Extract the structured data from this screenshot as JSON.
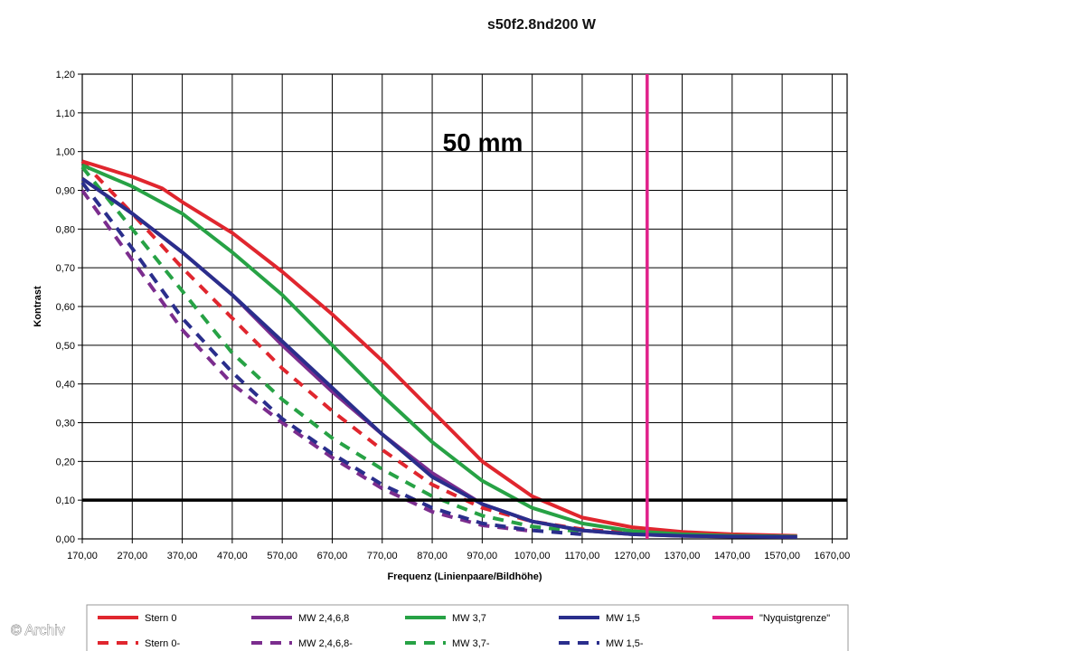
{
  "watermark": "© Archiv",
  "chart_data": {
    "type": "line",
    "title": "s50f2.8nd200 W",
    "annotation": "50 mm",
    "xlabel": "Frequenz (Linienpaare/Bildhöhe)",
    "ylabel": "Kontrast",
    "xlim": [
      170,
      1700
    ],
    "ylim": [
      0,
      1.2
    ],
    "x_ticks": [
      "170,00",
      "270,00",
      "370,00",
      "470,00",
      "570,00",
      "670,00",
      "770,00",
      "870,00",
      "970,00",
      "1070,00",
      "1170,00",
      "1270,00",
      "1370,00",
      "1470,00",
      "1570,00",
      "1670,00"
    ],
    "x_tick_values": [
      170,
      270,
      370,
      470,
      570,
      670,
      770,
      870,
      970,
      1070,
      1170,
      1270,
      1370,
      1470,
      1570,
      1670
    ],
    "y_ticks": [
      "0,00",
      "0,10",
      "0,20",
      "0,30",
      "0,40",
      "0,50",
      "0,60",
      "0,70",
      "0,80",
      "0,90",
      "1,00",
      "1,10",
      "1,20"
    ],
    "y_tick_values": [
      0,
      0.1,
      0.2,
      0.3,
      0.4,
      0.5,
      0.6,
      0.7,
      0.8,
      0.9,
      1.0,
      1.1,
      1.2
    ],
    "grid": true,
    "legend_position": "bottom",
    "reference_lines": [
      {
        "orientation": "horizontal",
        "value": 0.1,
        "color": "#000000"
      },
      {
        "orientation": "vertical",
        "value": 1300,
        "color": "#e0208a",
        "name": "\"Nyquistgrenze\""
      }
    ],
    "series": [
      {
        "name": "Stern 0",
        "color": "#e0262e",
        "dash": false,
        "x": [
          170,
          270,
          330,
          370,
          470,
          570,
          670,
          770,
          870,
          970,
          1070,
          1170,
          1270,
          1370,
          1470,
          1600
        ],
        "y": [
          0.975,
          0.935,
          0.905,
          0.87,
          0.79,
          0.69,
          0.58,
          0.46,
          0.33,
          0.2,
          0.11,
          0.055,
          0.03,
          0.018,
          0.012,
          0.008
        ]
      },
      {
        "name": "Stern 0-",
        "color": "#e0262e",
        "dash": true,
        "x": [
          170,
          270,
          370,
          470,
          570,
          670,
          770,
          870,
          970,
          1070,
          1170,
          1270
        ],
        "y": [
          0.975,
          0.84,
          0.7,
          0.57,
          0.44,
          0.33,
          0.23,
          0.14,
          0.08,
          0.045,
          0.025,
          0.015
        ]
      },
      {
        "name": "MW 2,4,6,8",
        "color": "#7b2d8e",
        "dash": false,
        "x": [
          170,
          270,
          370,
          470,
          570,
          670,
          770,
          870,
          970,
          1070,
          1170,
          1270,
          1370,
          1470,
          1600
        ],
        "y": [
          0.93,
          0.84,
          0.74,
          0.63,
          0.5,
          0.38,
          0.27,
          0.17,
          0.09,
          0.045,
          0.022,
          0.012,
          0.008,
          0.006,
          0.005
        ]
      },
      {
        "name": "MW 2,4,6,8-",
        "color": "#7b2d8e",
        "dash": true,
        "x": [
          170,
          270,
          370,
          470,
          570,
          670,
          770,
          870,
          970,
          1070
        ],
        "y": [
          0.9,
          0.72,
          0.54,
          0.4,
          0.3,
          0.21,
          0.13,
          0.07,
          0.035,
          0.02
        ]
      },
      {
        "name": "MW 3,7",
        "color": "#27a245",
        "dash": false,
        "x": [
          170,
          270,
          370,
          470,
          570,
          670,
          770,
          870,
          970,
          1070,
          1170,
          1270,
          1370,
          1470,
          1600
        ],
        "y": [
          0.965,
          0.91,
          0.84,
          0.74,
          0.63,
          0.5,
          0.37,
          0.25,
          0.15,
          0.08,
          0.04,
          0.02,
          0.012,
          0.008,
          0.006
        ]
      },
      {
        "name": "MW 3,7-",
        "color": "#27a245",
        "dash": true,
        "x": [
          170,
          270,
          370,
          470,
          570,
          670,
          770,
          870,
          970,
          1070,
          1170
        ],
        "y": [
          0.96,
          0.8,
          0.64,
          0.48,
          0.36,
          0.26,
          0.18,
          0.11,
          0.06,
          0.032,
          0.018
        ]
      },
      {
        "name": "MW 1,5",
        "color": "#2a2e8c",
        "dash": false,
        "x": [
          170,
          270,
          370,
          470,
          570,
          670,
          770,
          870,
          970,
          1070,
          1170,
          1270,
          1370,
          1470,
          1600
        ],
        "y": [
          0.93,
          0.84,
          0.74,
          0.63,
          0.51,
          0.39,
          0.27,
          0.16,
          0.09,
          0.045,
          0.022,
          0.012,
          0.008,
          0.006,
          0.005
        ]
      },
      {
        "name": "MW 1,5-",
        "color": "#2a2e8c",
        "dash": true,
        "x": [
          170,
          270,
          370,
          470,
          570,
          670,
          770,
          870,
          970,
          1070,
          1170
        ],
        "y": [
          0.92,
          0.75,
          0.57,
          0.43,
          0.31,
          0.22,
          0.14,
          0.08,
          0.04,
          0.022,
          0.012
        ]
      }
    ],
    "legend": [
      {
        "label": "Stern 0",
        "color": "#e0262e",
        "dash": false
      },
      {
        "label": "MW 2,4,6,8",
        "color": "#7b2d8e",
        "dash": false
      },
      {
        "label": "MW 3,7",
        "color": "#27a245",
        "dash": false
      },
      {
        "label": "MW 1,5",
        "color": "#2a2e8c",
        "dash": false
      },
      {
        "label": "\"Nyquistgrenze\"",
        "color": "#e0208a",
        "dash": false
      },
      {
        "label": "Stern 0-",
        "color": "#e0262e",
        "dash": true
      },
      {
        "label": "MW 2,4,6,8-",
        "color": "#7b2d8e",
        "dash": true
      },
      {
        "label": "MW 3,7-",
        "color": "#27a245",
        "dash": true
      },
      {
        "label": "MW 1,5-",
        "color": "#2a2e8c",
        "dash": true
      }
    ]
  }
}
